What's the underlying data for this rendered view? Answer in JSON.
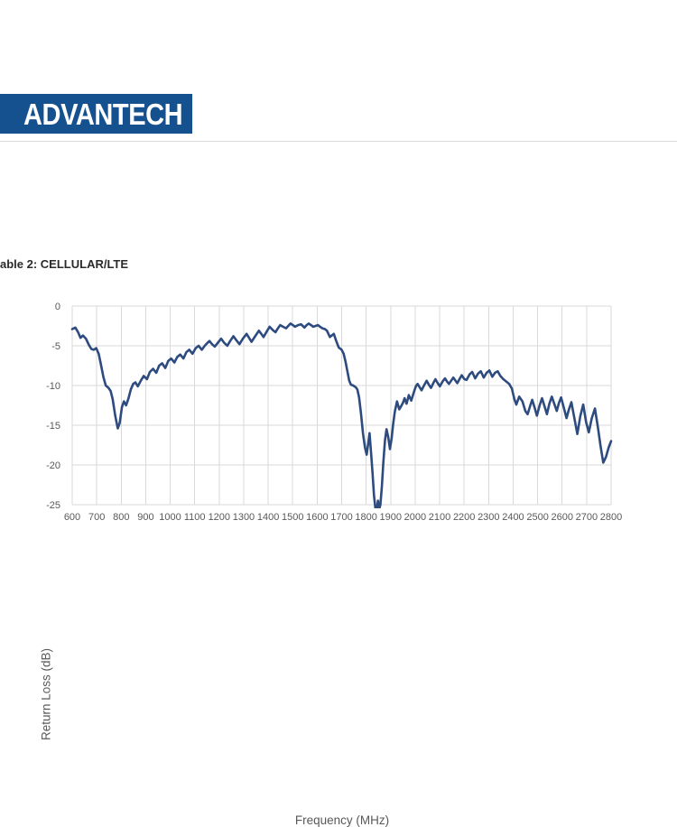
{
  "page": {
    "logo_text": "ADVANTECH",
    "caption": "able 2: CELLULAR/LTE"
  },
  "colors": {
    "logo_bg": "#15518F",
    "logo_text": "#FFFFFF",
    "line": "#2E4B7F",
    "grid": "#D9D9D9",
    "tick_text": "#595959",
    "axis_title_text": "#595959",
    "caption_text": "#2A2A2A",
    "divider": "#DBDBDB"
  },
  "chart_data": {
    "type": "line",
    "title": "",
    "xlabel": "Frequency (MHz)",
    "ylabel": "Return Loss (dB)",
    "xlim": [
      600,
      2800
    ],
    "ylim": [
      -25,
      0
    ],
    "x_tick_step": 100,
    "y_tick_step": 5,
    "grid": true,
    "legend": "none",
    "series": [
      {
        "name": "Return Loss",
        "points": [
          [
            600,
            -2.9
          ],
          [
            613,
            -2.7
          ],
          [
            624,
            -3.3
          ],
          [
            634,
            -4.0
          ],
          [
            644,
            -3.7
          ],
          [
            656,
            -4.1
          ],
          [
            668,
            -4.9
          ],
          [
            678,
            -5.4
          ],
          [
            688,
            -5.5
          ],
          [
            698,
            -5.3
          ],
          [
            708,
            -6.0
          ],
          [
            717,
            -7.3
          ],
          [
            728,
            -9.0
          ],
          [
            737,
            -10.0
          ],
          [
            748,
            -10.3
          ],
          [
            757,
            -10.7
          ],
          [
            765,
            -11.7
          ],
          [
            776,
            -13.9
          ],
          [
            786,
            -15.4
          ],
          [
            794,
            -14.7
          ],
          [
            803,
            -12.7
          ],
          [
            811,
            -12.0
          ],
          [
            820,
            -12.5
          ],
          [
            830,
            -11.6
          ],
          [
            839,
            -10.5
          ],
          [
            849,
            -9.8
          ],
          [
            858,
            -9.6
          ],
          [
            868,
            -10.1
          ],
          [
            880,
            -9.4
          ],
          [
            892,
            -8.8
          ],
          [
            905,
            -9.2
          ],
          [
            917,
            -8.3
          ],
          [
            930,
            -7.9
          ],
          [
            943,
            -8.4
          ],
          [
            955,
            -7.5
          ],
          [
            967,
            -7.2
          ],
          [
            980,
            -7.8
          ],
          [
            992,
            -6.9
          ],
          [
            1004,
            -6.6
          ],
          [
            1017,
            -7.1
          ],
          [
            1029,
            -6.4
          ],
          [
            1041,
            -6.1
          ],
          [
            1054,
            -6.6
          ],
          [
            1066,
            -5.8
          ],
          [
            1078,
            -5.5
          ],
          [
            1091,
            -6.0
          ],
          [
            1104,
            -5.3
          ],
          [
            1116,
            -5.0
          ],
          [
            1129,
            -5.5
          ],
          [
            1141,
            -5.0
          ],
          [
            1153,
            -4.6
          ],
          [
            1160,
            -4.4
          ],
          [
            1171,
            -4.8
          ],
          [
            1182,
            -5.1
          ],
          [
            1195,
            -4.6
          ],
          [
            1208,
            -4.1
          ],
          [
            1220,
            -4.6
          ],
          [
            1233,
            -5.0
          ],
          [
            1245,
            -4.4
          ],
          [
            1258,
            -3.8
          ],
          [
            1270,
            -4.3
          ],
          [
            1283,
            -4.8
          ],
          [
            1297,
            -4.1
          ],
          [
            1312,
            -3.5
          ],
          [
            1322,
            -4.0
          ],
          [
            1332,
            -4.5
          ],
          [
            1347,
            -3.8
          ],
          [
            1362,
            -3.1
          ],
          [
            1372,
            -3.5
          ],
          [
            1381,
            -3.9
          ],
          [
            1394,
            -3.2
          ],
          [
            1406,
            -2.6
          ],
          [
            1418,
            -3.0
          ],
          [
            1430,
            -3.3
          ],
          [
            1440,
            -2.8
          ],
          [
            1449,
            -2.4
          ],
          [
            1461,
            -2.6
          ],
          [
            1473,
            -2.8
          ],
          [
            1482,
            -2.5
          ],
          [
            1491,
            -2.2
          ],
          [
            1501,
            -2.4
          ],
          [
            1510,
            -2.6
          ],
          [
            1522,
            -2.4
          ],
          [
            1534,
            -2.3
          ],
          [
            1541,
            -2.5
          ],
          [
            1548,
            -2.7
          ],
          [
            1557,
            -2.4
          ],
          [
            1565,
            -2.2
          ],
          [
            1575,
            -2.4
          ],
          [
            1584,
            -2.6
          ],
          [
            1594,
            -2.5
          ],
          [
            1603,
            -2.4
          ],
          [
            1612,
            -2.6
          ],
          [
            1621,
            -2.8
          ],
          [
            1632,
            -2.9
          ],
          [
            1640,
            -3.1
          ],
          [
            1652,
            -3.9
          ],
          [
            1668,
            -3.5
          ],
          [
            1678,
            -4.4
          ],
          [
            1688,
            -5.2
          ],
          [
            1700,
            -5.5
          ],
          [
            1708,
            -6.0
          ],
          [
            1716,
            -7.0
          ],
          [
            1724,
            -8.3
          ],
          [
            1731,
            -9.4
          ],
          [
            1738,
            -9.9
          ],
          [
            1747,
            -10.0
          ],
          [
            1757,
            -10.2
          ],
          [
            1764,
            -10.5
          ],
          [
            1771,
            -11.5
          ],
          [
            1779,
            -13.5
          ],
          [
            1787,
            -16.0
          ],
          [
            1795,
            -17.8
          ],
          [
            1802,
            -18.7
          ],
          [
            1808,
            -17.4
          ],
          [
            1814,
            -16.0
          ],
          [
            1820,
            -18.5
          ],
          [
            1826,
            -21.0
          ],
          [
            1832,
            -23.8
          ],
          [
            1838,
            -25.5
          ],
          [
            1843,
            -25.7
          ],
          [
            1848,
            -24.5
          ],
          [
            1853,
            -25.6
          ],
          [
            1858,
            -25.0
          ],
          [
            1864,
            -22.8
          ],
          [
            1870,
            -19.8
          ],
          [
            1877,
            -16.9
          ],
          [
            1883,
            -15.5
          ],
          [
            1890,
            -16.5
          ],
          [
            1897,
            -18.0
          ],
          [
            1904,
            -16.6
          ],
          [
            1910,
            -14.9
          ],
          [
            1917,
            -13.3
          ],
          [
            1926,
            -12.0
          ],
          [
            1935,
            -13.0
          ],
          [
            1943,
            -12.6
          ],
          [
            1950,
            -12.2
          ],
          [
            1957,
            -11.6
          ],
          [
            1965,
            -12.3
          ],
          [
            1974,
            -11.2
          ],
          [
            1984,
            -11.9
          ],
          [
            1995,
            -10.8
          ],
          [
            2003,
            -10.1
          ],
          [
            2010,
            -9.8
          ],
          [
            2018,
            -10.2
          ],
          [
            2026,
            -10.6
          ],
          [
            2036,
            -10.0
          ],
          [
            2047,
            -9.4
          ],
          [
            2056,
            -9.9
          ],
          [
            2065,
            -10.3
          ],
          [
            2074,
            -9.7
          ],
          [
            2083,
            -9.2
          ],
          [
            2092,
            -9.7
          ],
          [
            2101,
            -10.1
          ],
          [
            2112,
            -9.5
          ],
          [
            2122,
            -9.1
          ],
          [
            2130,
            -9.5
          ],
          [
            2138,
            -9.8
          ],
          [
            2147,
            -9.4
          ],
          [
            2156,
            -9.0
          ],
          [
            2165,
            -9.4
          ],
          [
            2172,
            -9.7
          ],
          [
            2181,
            -9.2
          ],
          [
            2190,
            -8.7
          ],
          [
            2201,
            -9.2
          ],
          [
            2210,
            -9.3
          ],
          [
            2222,
            -8.6
          ],
          [
            2233,
            -8.3
          ],
          [
            2245,
            -9.1
          ],
          [
            2257,
            -8.5
          ],
          [
            2268,
            -8.2
          ],
          [
            2280,
            -9.0
          ],
          [
            2292,
            -8.4
          ],
          [
            2303,
            -8.1
          ],
          [
            2315,
            -8.9
          ],
          [
            2326,
            -8.4
          ],
          [
            2337,
            -8.2
          ],
          [
            2348,
            -8.8
          ],
          [
            2360,
            -9.2
          ],
          [
            2372,
            -9.5
          ],
          [
            2384,
            -9.8
          ],
          [
            2395,
            -10.4
          ],
          [
            2405,
            -11.7
          ],
          [
            2413,
            -12.4
          ],
          [
            2425,
            -11.4
          ],
          [
            2438,
            -12.0
          ],
          [
            2450,
            -13.2
          ],
          [
            2459,
            -13.6
          ],
          [
            2470,
            -12.5
          ],
          [
            2478,
            -11.8
          ],
          [
            2488,
            -12.8
          ],
          [
            2497,
            -13.8
          ],
          [
            2508,
            -12.5
          ],
          [
            2518,
            -11.6
          ],
          [
            2528,
            -12.6
          ],
          [
            2538,
            -13.6
          ],
          [
            2548,
            -12.3
          ],
          [
            2558,
            -11.4
          ],
          [
            2568,
            -12.3
          ],
          [
            2578,
            -13.2
          ],
          [
            2587,
            -12.2
          ],
          [
            2596,
            -11.5
          ],
          [
            2607,
            -12.8
          ],
          [
            2618,
            -14.1
          ],
          [
            2628,
            -13.0
          ],
          [
            2638,
            -12.1
          ],
          [
            2650,
            -14.1
          ],
          [
            2662,
            -16.1
          ],
          [
            2674,
            -13.9
          ],
          [
            2686,
            -12.4
          ],
          [
            2698,
            -14.6
          ],
          [
            2709,
            -15.9
          ],
          [
            2721,
            -14.1
          ],
          [
            2734,
            -12.9
          ],
          [
            2746,
            -15.2
          ],
          [
            2757,
            -17.6
          ],
          [
            2768,
            -19.7
          ],
          [
            2779,
            -19.0
          ],
          [
            2790,
            -17.8
          ],
          [
            2800,
            -17.0
          ]
        ]
      }
    ]
  }
}
